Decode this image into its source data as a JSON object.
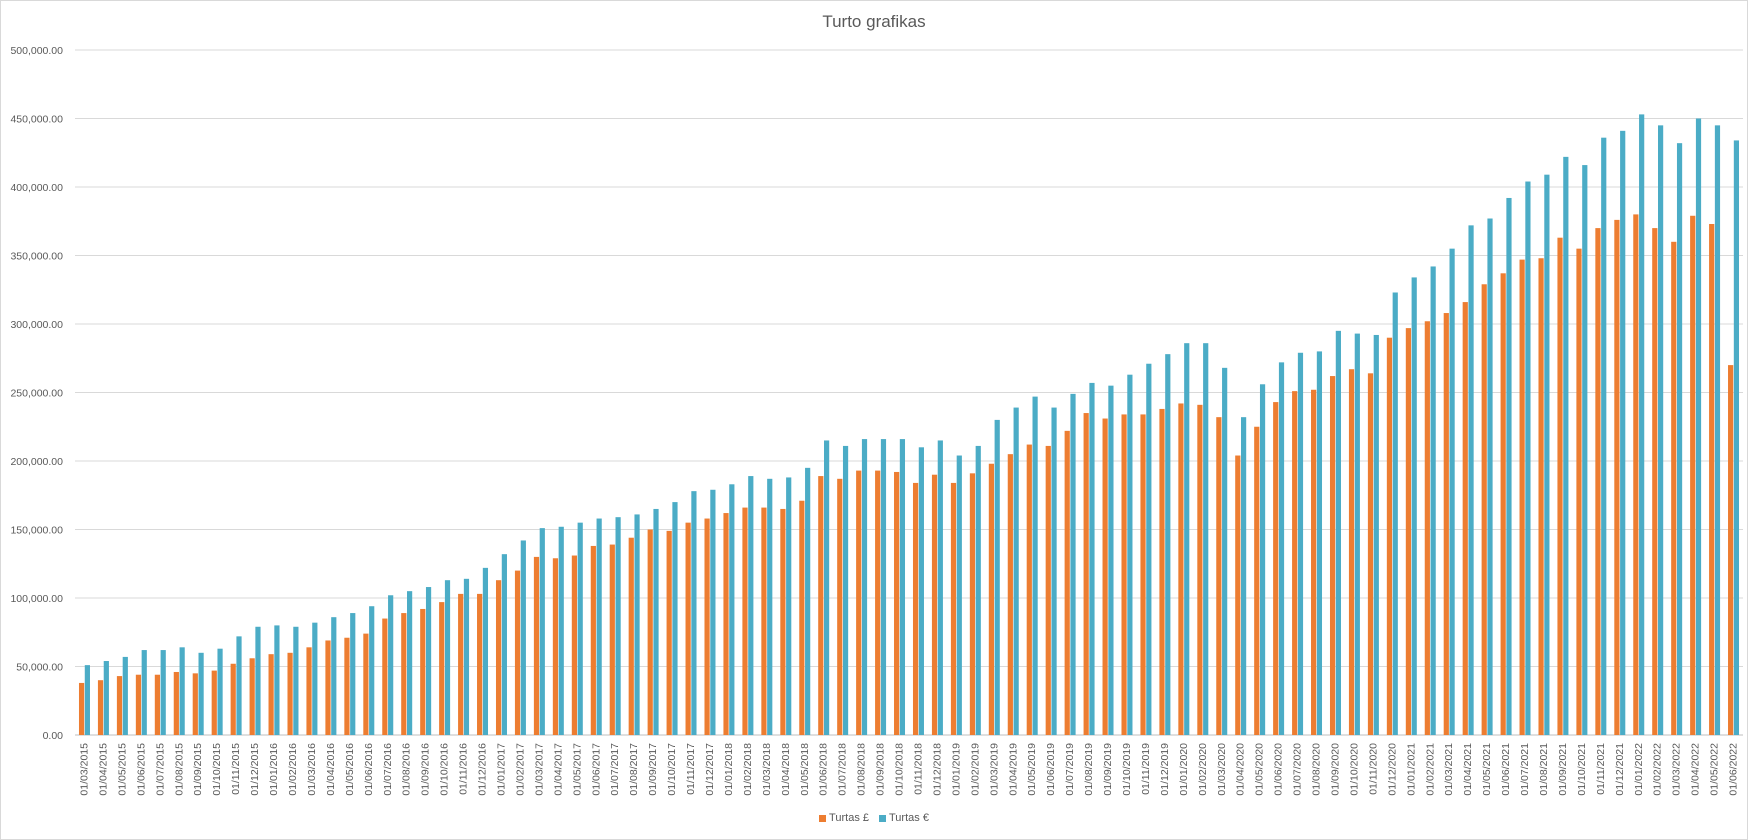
{
  "chart_data": {
    "type": "bar",
    "title": "Turto grafikas",
    "xlabel": "",
    "ylabel": "",
    "ylim": [
      0,
      500000
    ],
    "yticks": [
      "0.00",
      "50,000.00",
      "100,000.00",
      "150,000.00",
      "200,000.00",
      "250,000.00",
      "300,000.00",
      "350,000.00",
      "400,000.00",
      "450,000.00",
      "500,000.00"
    ],
    "grid": true,
    "legend_position": "bottom",
    "categories": [
      "01/03/2015",
      "01/04/2015",
      "01/05/2015",
      "01/06/2015",
      "01/07/2015",
      "01/08/2015",
      "01/09/2015",
      "01/10/2015",
      "01/11/2015",
      "01/12/2015",
      "01/01/2016",
      "01/02/2016",
      "01/03/2016",
      "01/04/2016",
      "01/05/2016",
      "01/06/2016",
      "01/07/2016",
      "01/08/2016",
      "01/09/2016",
      "01/10/2016",
      "01/11/2016",
      "01/12/2016",
      "01/01/2017",
      "01/02/2017",
      "01/03/2017",
      "01/04/2017",
      "01/05/2017",
      "01/06/2017",
      "01/07/2017",
      "01/08/2017",
      "01/09/2017",
      "01/10/2017",
      "01/11/2017",
      "01/12/2017",
      "01/01/2018",
      "01/02/2018",
      "01/03/2018",
      "01/04/2018",
      "01/05/2018",
      "01/06/2018",
      "01/07/2018",
      "01/08/2018",
      "01/09/2018",
      "01/10/2018",
      "01/11/2018",
      "01/12/2018",
      "01/01/2019",
      "01/02/2019",
      "01/03/2019",
      "01/04/2019",
      "01/05/2019",
      "01/06/2019",
      "01/07/2019",
      "01/08/2019",
      "01/09/2019",
      "01/10/2019",
      "01/11/2019",
      "01/12/2019",
      "01/01/2020",
      "01/02/2020",
      "01/03/2020",
      "01/04/2020",
      "01/05/2020",
      "01/06/2020",
      "01/07/2020",
      "01/08/2020",
      "01/09/2020",
      "01/10/2020",
      "01/11/2020",
      "01/12/2020",
      "01/01/2021",
      "01/02/2021",
      "01/03/2021",
      "01/04/2021",
      "01/05/2021",
      "01/06/2021",
      "01/07/2021",
      "01/08/2021",
      "01/09/2021",
      "01/10/2021",
      "01/11/2021",
      "01/12/2021",
      "01/01/2022",
      "01/02/2022",
      "01/03/2022",
      "01/04/2022",
      "01/05/2022",
      "01/06/2022"
    ],
    "series": [
      {
        "name": "Turtas £",
        "color": "#ED7D31",
        "values": [
          38000,
          40000,
          43000,
          44000,
          44000,
          46000,
          45000,
          47000,
          52000,
          56000,
          59000,
          60000,
          64000,
          69000,
          71000,
          74000,
          85000,
          89000,
          92000,
          97000,
          103000,
          103000,
          113000,
          120000,
          130000,
          129000,
          131000,
          138000,
          139000,
          144000,
          150000,
          149000,
          155000,
          158000,
          162000,
          166000,
          166000,
          165000,
          171000,
          189000,
          187000,
          193000,
          193000,
          192000,
          184000,
          190000,
          184000,
          191000,
          198000,
          205000,
          212000,
          211000,
          222000,
          235000,
          231000,
          234000,
          234000,
          238000,
          242000,
          241000,
          232000,
          204000,
          225000,
          243000,
          251000,
          252000,
          262000,
          267000,
          264000,
          290000,
          297000,
          302000,
          308000,
          316000,
          329000,
          337000,
          347000,
          348000,
          363000,
          355000,
          370000,
          376000,
          380000,
          370000,
          360000,
          379000,
          373000,
          270000
        ]
      },
      {
        "name": "Turtas €",
        "color": "#4BACC6",
        "values": [
          51000,
          54000,
          57000,
          62000,
          62000,
          64000,
          60000,
          63000,
          72000,
          79000,
          80000,
          79000,
          82000,
          86000,
          89000,
          94000,
          102000,
          105000,
          108000,
          113000,
          114000,
          122000,
          132000,
          142000,
          151000,
          152000,
          155000,
          158000,
          159000,
          161000,
          165000,
          170000,
          178000,
          179000,
          183000,
          189000,
          187000,
          188000,
          195000,
          215000,
          211000,
          216000,
          216000,
          216000,
          210000,
          215000,
          204000,
          211000,
          230000,
          239000,
          247000,
          239000,
          249000,
          257000,
          255000,
          263000,
          271000,
          278000,
          286000,
          286000,
          268000,
          232000,
          256000,
          272000,
          279000,
          280000,
          295000,
          293000,
          292000,
          323000,
          334000,
          342000,
          355000,
          372000,
          377000,
          392000,
          404000,
          409000,
          422000,
          416000,
          436000,
          441000,
          453000,
          445000,
          432000,
          450000,
          445000,
          434000
        ]
      }
    ]
  }
}
